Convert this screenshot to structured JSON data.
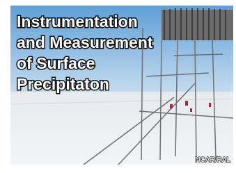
{
  "title_lines": [
    "Instrumentation",
    "and Measurement",
    "of Surface",
    "Precipitaton"
  ],
  "credit": "NCAR/RAL"
}
